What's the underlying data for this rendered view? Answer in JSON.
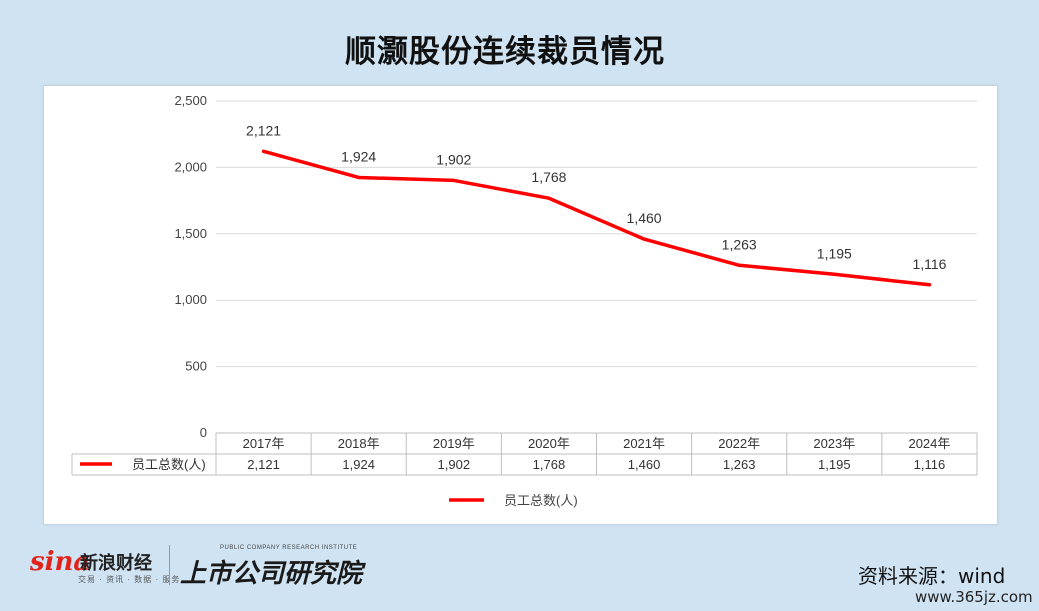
{
  "title": "顺灏股份连续裁员情况",
  "chart_data": {
    "type": "line",
    "categories": [
      "2017年",
      "2018年",
      "2019年",
      "2020年",
      "2021年",
      "2022年",
      "2023年",
      "2024年"
    ],
    "series": [
      {
        "name": "员工总数(人)",
        "values": [
          2121,
          1924,
          1902,
          1768,
          1460,
          1263,
          1195,
          1116
        ],
        "labels": [
          "2,121",
          "1,924",
          "1,902",
          "1,768",
          "1,460",
          "1,263",
          "1,195",
          "1,116"
        ],
        "color": "#ff0000"
      }
    ],
    "ylim": [
      0,
      2500
    ],
    "yticks": [
      0,
      500,
      1000,
      1500,
      2000,
      2500
    ],
    "ytick_labels": [
      "0",
      "500",
      "1,000",
      "1,500",
      "2,000",
      "2,500"
    ],
    "grid": true,
    "legend": "bottom",
    "data_table": true
  },
  "footer": {
    "sina_logo": "sina",
    "sina_name": "新浪财经",
    "sina_sub": "交易 · 资讯 · 数据 · 服务",
    "research_en": "PUBLIC COMPANY RESEARCH INSTITUTE",
    "research_cn": "上市公司研究院",
    "source": "资料来源：wind",
    "watermark": "www.365jz.com"
  }
}
